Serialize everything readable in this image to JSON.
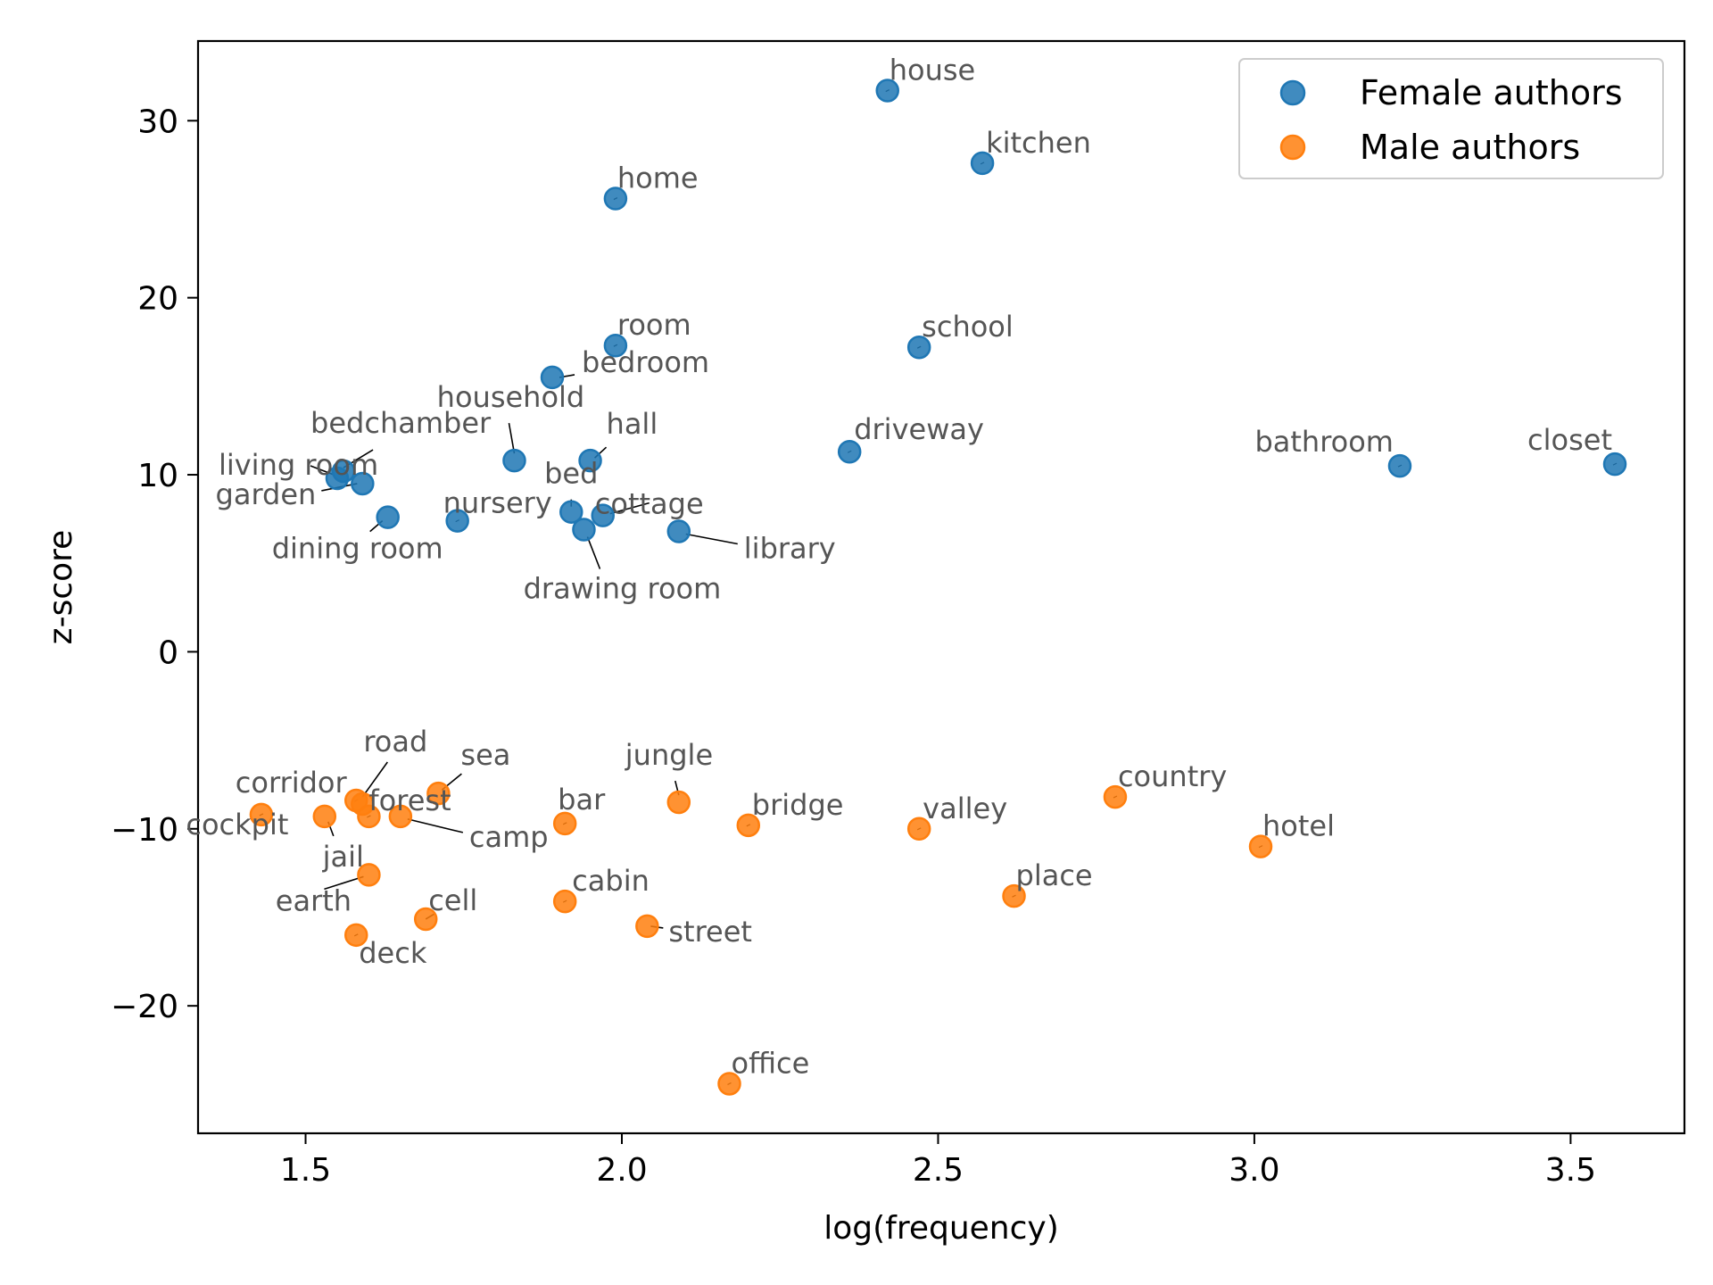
{
  "chart_data": {
    "type": "scatter",
    "xlabel": "log(frequency)",
    "ylabel": "z-score",
    "xlim": [
      1.33,
      3.68
    ],
    "ylim": [
      -27.2,
      34.5
    ],
    "xticks": [
      1.5,
      2.0,
      2.5,
      3.0,
      3.5
    ],
    "xtick_labels": [
      "1.5",
      "2.0",
      "2.5",
      "3.0",
      "3.5"
    ],
    "yticks": [
      -20,
      -10,
      0,
      10,
      20,
      30
    ],
    "ytick_labels": [
      "−20",
      "−10",
      "0",
      "10",
      "20",
      "30"
    ],
    "grid": false,
    "legend_position": "top-right",
    "series": [
      {
        "name": "Female authors",
        "color": "#1f77b4",
        "points": [
          {
            "label": "house",
            "x": 2.42,
            "y": 31.7
          },
          {
            "label": "kitchen",
            "x": 2.57,
            "y": 27.6
          },
          {
            "label": "home",
            "x": 1.99,
            "y": 25.6
          },
          {
            "label": "room",
            "x": 1.99,
            "y": 17.3
          },
          {
            "label": "school",
            "x": 2.47,
            "y": 17.2
          },
          {
            "label": "bedroom",
            "x": 1.89,
            "y": 15.5
          },
          {
            "label": "household",
            "x": 1.83,
            "y": 10.8
          },
          {
            "label": "hall",
            "x": 1.95,
            "y": 10.8
          },
          {
            "label": "driveway",
            "x": 2.36,
            "y": 11.3
          },
          {
            "label": "bathroom",
            "x": 3.23,
            "y": 10.5
          },
          {
            "label": "closet",
            "x": 3.57,
            "y": 10.6
          },
          {
            "label": "living room",
            "x": 1.55,
            "y": 9.8
          },
          {
            "label": "bedchamber",
            "x": 1.56,
            "y": 10.2
          },
          {
            "label": "garden",
            "x": 1.59,
            "y": 9.5
          },
          {
            "label": "dining room",
            "x": 1.63,
            "y": 7.6
          },
          {
            "label": "nursery",
            "x": 1.74,
            "y": 7.4
          },
          {
            "label": "bed",
            "x": 1.92,
            "y": 7.9
          },
          {
            "label": "cottage",
            "x": 1.97,
            "y": 7.7
          },
          {
            "label": "drawing room",
            "x": 1.94,
            "y": 6.9
          },
          {
            "label": "library",
            "x": 2.09,
            "y": 6.8
          }
        ]
      },
      {
        "name": "Male authors",
        "color": "#ff7f0e",
        "points": [
          {
            "label": "corridor",
            "x": 1.58,
            "y": -8.4
          },
          {
            "label": "road",
            "x": 1.59,
            "y": -8.6
          },
          {
            "label": "sea",
            "x": 1.71,
            "y": -8.0
          },
          {
            "label": "forest",
            "x": 1.6,
            "y": -9.3
          },
          {
            "label": "cockpit",
            "x": 1.43,
            "y": -9.2
          },
          {
            "label": "jail",
            "x": 1.53,
            "y": -9.3
          },
          {
            "label": "camp",
            "x": 1.65,
            "y": -9.3
          },
          {
            "label": "earth",
            "x": 1.6,
            "y": -12.6
          },
          {
            "label": "cell",
            "x": 1.69,
            "y": -15.1
          },
          {
            "label": "deck",
            "x": 1.58,
            "y": -16.0
          },
          {
            "label": "bar",
            "x": 1.91,
            "y": -9.7
          },
          {
            "label": "jungle",
            "x": 2.09,
            "y": -8.5
          },
          {
            "label": "bridge",
            "x": 2.2,
            "y": -9.8
          },
          {
            "label": "valley",
            "x": 2.47,
            "y": -10.0
          },
          {
            "label": "country",
            "x": 2.78,
            "y": -8.2
          },
          {
            "label": "hotel",
            "x": 3.01,
            "y": -11.0
          },
          {
            "label": "cabin",
            "x": 1.91,
            "y": -14.1
          },
          {
            "label": "street",
            "x": 2.04,
            "y": -15.5
          },
          {
            "label": "place",
            "x": 2.62,
            "y": -13.8
          },
          {
            "label": "office",
            "x": 2.17,
            "y": -24.4
          }
        ]
      }
    ]
  }
}
